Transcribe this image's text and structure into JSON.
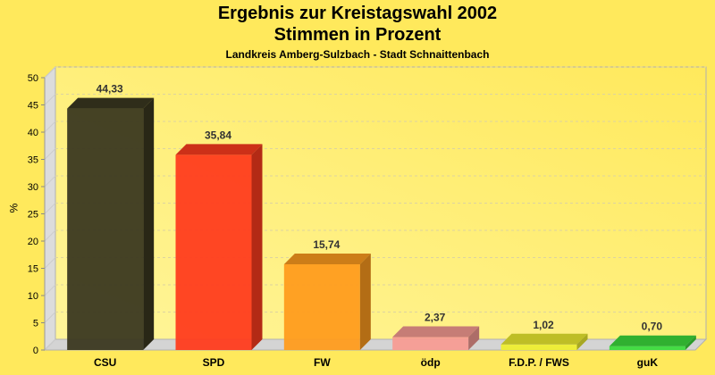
{
  "chart_data": {
    "type": "bar",
    "title": "Ergebnis zur Kreistagswahl 2002",
    "subtitle": "Stimmen in Prozent",
    "caption": "Landkreis Amberg-Sulzbach - Stadt Schnaittenbach",
    "xlabel": "",
    "ylabel": "%",
    "ylim": [
      0,
      50
    ],
    "yticks": [
      0,
      5,
      10,
      15,
      20,
      25,
      30,
      35,
      40,
      45,
      50
    ],
    "grid": true,
    "categories": [
      "CSU",
      "SPD",
      "FW",
      "ödp",
      "F.D.P. / FWS",
      "guK"
    ],
    "values": [
      44.33,
      35.84,
      15.74,
      2.37,
      1.02,
      0.7
    ],
    "value_labels": [
      "44,33",
      "35,84",
      "15,74",
      "2,37",
      "1,02",
      "0,70"
    ],
    "colors": [
      "#3b3820",
      "#ff3c1e",
      "#ff9c1e",
      "#f79c94",
      "#eeee30",
      "#3cdc3c"
    ]
  }
}
